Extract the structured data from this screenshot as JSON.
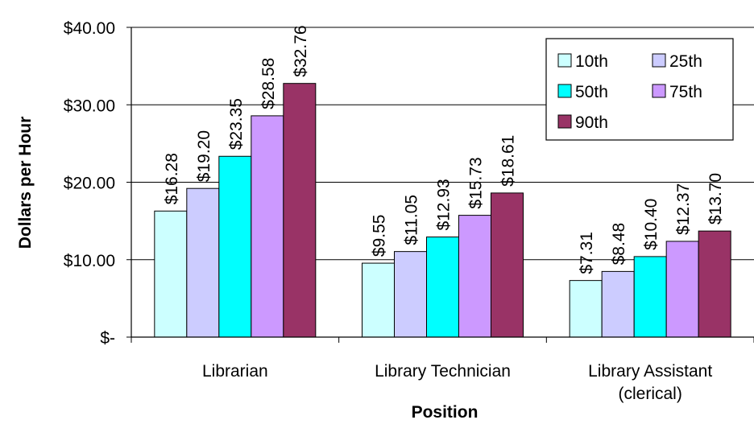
{
  "chart_data": {
    "type": "bar",
    "title": "",
    "xlabel": "Position",
    "ylabel": "Dollars per Hour",
    "categories": [
      "Librarian",
      "Library Technician",
      "Library Assistant (clerical)"
    ],
    "category_lines": [
      [
        "Librarian"
      ],
      [
        "Library Technician"
      ],
      [
        "Library Assistant",
        "(clerical)"
      ]
    ],
    "ylim": [
      0,
      40
    ],
    "yticks": [
      0,
      10,
      20,
      30,
      40
    ],
    "ytick_labels": [
      "$-",
      "$10.00",
      "$20.00",
      "$30.00",
      "$40.00"
    ],
    "grid": true,
    "legend_position": "top-right",
    "series": [
      {
        "name": "10th",
        "color": "#CCFFFF",
        "values": [
          16.28,
          9.55,
          7.31
        ],
        "labels": [
          "$16.28",
          "$9.55",
          "$7.31"
        ]
      },
      {
        "name": "25th",
        "color": "#CCCCFF",
        "values": [
          19.2,
          11.05,
          8.48
        ],
        "labels": [
          "$19.20",
          "$11.05",
          "$8.48"
        ]
      },
      {
        "name": "50th",
        "color": "#00FFFF",
        "values": [
          23.35,
          12.93,
          10.4
        ],
        "labels": [
          "$23.35",
          "$12.93",
          "$10.40"
        ]
      },
      {
        "name": "75th",
        "color": "#CC99FF",
        "values": [
          28.58,
          15.73,
          12.37
        ],
        "labels": [
          "$28.58",
          "$15.73",
          "$12.37"
        ]
      },
      {
        "name": "90th",
        "color": "#993366",
        "values": [
          32.76,
          18.61,
          13.7
        ],
        "labels": [
          "$32.76",
          "$18.61",
          "$13.70"
        ]
      }
    ]
  }
}
